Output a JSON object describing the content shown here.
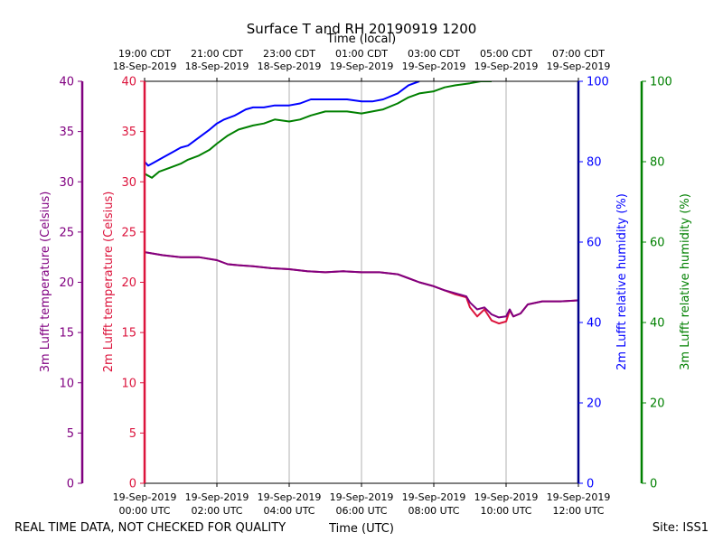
{
  "chart_data": {
    "type": "line",
    "title": "Surface T and RH 20190919 1200",
    "top_axis_label": "Time (local)",
    "xlabel": "Time (UTC)",
    "footer_left": "REAL TIME DATA, NOT CHECKED FOR QUALITY",
    "footer_right": "Site: ISS1",
    "x_range_hours": [
      0,
      12
    ],
    "bottom_ticks": [
      {
        "hour": 0,
        "line1": "19-Sep-2019",
        "line2": "00:00 UTC"
      },
      {
        "hour": 2,
        "line1": "19-Sep-2019",
        "line2": "02:00 UTC"
      },
      {
        "hour": 4,
        "line1": "19-Sep-2019",
        "line2": "04:00 UTC"
      },
      {
        "hour": 6,
        "line1": "19-Sep-2019",
        "line2": "06:00 UTC"
      },
      {
        "hour": 8,
        "line1": "19-Sep-2019",
        "line2": "08:00 UTC"
      },
      {
        "hour": 10,
        "line1": "19-Sep-2019",
        "line2": "10:00 UTC"
      },
      {
        "hour": 12,
        "line1": "19-Sep-2019",
        "line2": "12:00 UTC"
      }
    ],
    "top_ticks": [
      {
        "hour": 0,
        "line1": "19:00 CDT",
        "line2": "18-Sep-2019"
      },
      {
        "hour": 2,
        "line1": "21:00 CDT",
        "line2": "18-Sep-2019"
      },
      {
        "hour": 4,
        "line1": "23:00 CDT",
        "line2": "18-Sep-2019"
      },
      {
        "hour": 6,
        "line1": "01:00 CDT",
        "line2": "19-Sep-2019"
      },
      {
        "hour": 8,
        "line1": "03:00 CDT",
        "line2": "19-Sep-2019"
      },
      {
        "hour": 10,
        "line1": "05:00 CDT",
        "line2": "19-Sep-2019"
      },
      {
        "hour": 12,
        "line1": "07:00 CDT",
        "line2": "19-Sep-2019"
      }
    ],
    "axes": [
      {
        "id": "t3m",
        "label": "3m Lufft temperature (Celsius)",
        "range": [
          0,
          40
        ],
        "ticks": [
          0,
          5,
          10,
          15,
          20,
          25,
          30,
          35,
          40
        ],
        "color": "#800080"
      },
      {
        "id": "t2m",
        "label": "2m Lufft temperature (Celsius)",
        "range": [
          0,
          40
        ],
        "ticks": [
          0,
          5,
          10,
          15,
          20,
          25,
          30,
          35,
          40
        ],
        "color": "#dc143c"
      },
      {
        "id": "rh2m",
        "label": "2m Lufft relative humidity (%)",
        "range": [
          0,
          100
        ],
        "ticks": [
          0,
          20,
          40,
          60,
          80,
          100
        ],
        "color": "#0000ff"
      },
      {
        "id": "rh3m",
        "label": "3m Lufft relative humidity (%)",
        "range": [
          0,
          100
        ],
        "ticks": [
          0,
          20,
          40,
          60,
          80,
          100
        ],
        "color": "#008000"
      }
    ],
    "series": [
      {
        "name": "2m Lufft relative humidity",
        "axis": "rh2m",
        "color": "#0000ff",
        "x": [
          0,
          0.1,
          0.3,
          0.5,
          0.8,
          1.0,
          1.2,
          1.5,
          1.8,
          2.0,
          2.2,
          2.5,
          2.8,
          3.0,
          3.3,
          3.6,
          4.0,
          4.3,
          4.6,
          5.0,
          5.3,
          5.6,
          6.0,
          6.3,
          6.6,
          7.0,
          7.3,
          7.6
        ],
        "values": [
          80,
          79,
          80,
          81,
          82.5,
          83.5,
          84,
          86,
          88,
          89.5,
          90.5,
          91.5,
          93,
          93.5,
          93.5,
          94,
          94,
          94.5,
          95.5,
          95.5,
          95.5,
          95.5,
          95,
          95,
          95.5,
          97,
          99,
          100
        ]
      },
      {
        "name": "3m Lufft relative humidity",
        "axis": "rh3m",
        "color": "#008000",
        "x": [
          0,
          0.2,
          0.4,
          0.7,
          1.0,
          1.2,
          1.5,
          1.8,
          2.0,
          2.3,
          2.6,
          3.0,
          3.3,
          3.6,
          4.0,
          4.3,
          4.6,
          5.0,
          5.3,
          5.6,
          6.0,
          6.3,
          6.6,
          7.0,
          7.3,
          7.6,
          8.0,
          8.3,
          8.6,
          9.0,
          9.3,
          9.6
        ],
        "values": [
          77,
          76,
          77.5,
          78.5,
          79.5,
          80.5,
          81.5,
          83,
          84.5,
          86.5,
          88,
          89,
          89.5,
          90.5,
          90,
          90.5,
          91.5,
          92.5,
          92.5,
          92.5,
          92,
          92.5,
          93,
          94.5,
          96,
          97,
          97.5,
          98.5,
          99,
          99.5,
          100,
          100
        ]
      },
      {
        "name": "2m Lufft temperature",
        "axis": "t2m",
        "color": "#dc143c",
        "x": [
          0,
          0.5,
          1.0,
          1.5,
          2.0,
          2.3,
          2.6,
          3.0,
          3.5,
          4.0,
          4.5,
          5.0,
          5.5,
          6.0,
          6.5,
          7.0,
          7.3,
          7.6,
          8.0,
          8.3,
          8.6,
          8.9,
          9.0,
          9.2,
          9.4,
          9.6,
          9.8,
          10.0,
          10.1,
          10.2,
          10.4,
          10.6,
          11.0,
          11.5,
          12.0
        ],
        "values": [
          23,
          22.7,
          22.5,
          22.5,
          22.2,
          21.8,
          21.7,
          21.6,
          21.4,
          21.3,
          21.1,
          21.0,
          21.1,
          21.0,
          21.0,
          20.8,
          20.4,
          20.0,
          19.6,
          19.2,
          18.8,
          18.5,
          17.5,
          16.6,
          17.3,
          16.2,
          15.9,
          16.1,
          17.2,
          16.6,
          16.9,
          17.8,
          18.1,
          18.1,
          18.2
        ]
      },
      {
        "name": "3m Lufft temperature",
        "axis": "t3m",
        "color": "#800080",
        "x": [
          0,
          0.5,
          1.0,
          1.5,
          2.0,
          2.3,
          2.6,
          3.0,
          3.5,
          4.0,
          4.5,
          5.0,
          5.5,
          6.0,
          6.5,
          7.0,
          7.3,
          7.6,
          8.0,
          8.3,
          8.6,
          8.9,
          9.0,
          9.2,
          9.4,
          9.6,
          9.8,
          10.0,
          10.1,
          10.2,
          10.4,
          10.6,
          11.0,
          11.5,
          12.0
        ],
        "values": [
          23,
          22.7,
          22.5,
          22.5,
          22.2,
          21.8,
          21.7,
          21.6,
          21.4,
          21.3,
          21.1,
          21.0,
          21.1,
          21.0,
          21.0,
          20.8,
          20.4,
          20.0,
          19.6,
          19.2,
          18.9,
          18.6,
          18.0,
          17.3,
          17.5,
          16.8,
          16.5,
          16.6,
          17.3,
          16.6,
          16.9,
          17.8,
          18.1,
          18.1,
          18.2
        ]
      }
    ]
  }
}
